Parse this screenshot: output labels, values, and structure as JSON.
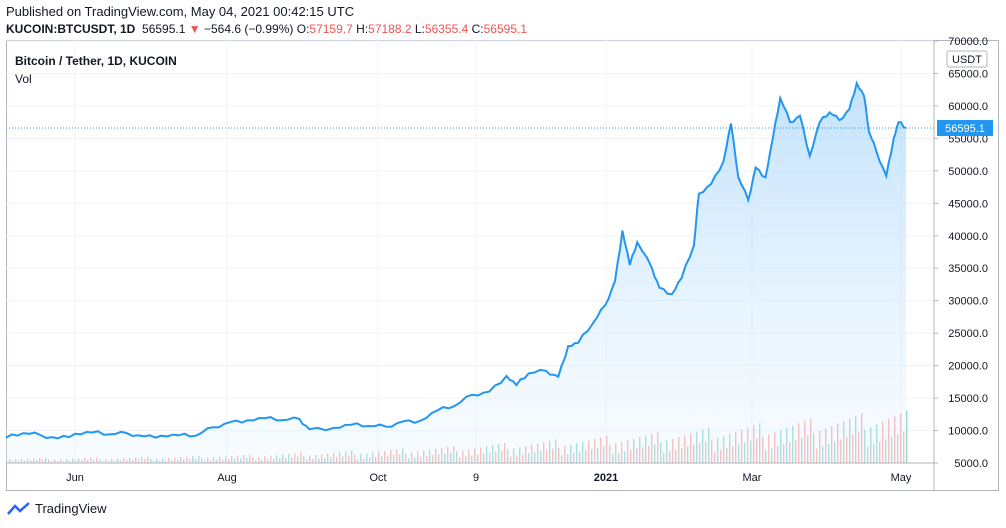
{
  "header": {
    "published": "Published on TradingView.com, May 04, 2021 00:42:15 UTC",
    "symbol": "KUCOIN:BTCUSDT, 1D",
    "last": "56595.1",
    "change": "−564.6 (−0.99%)",
    "open_label": "O:",
    "open": "57159.7",
    "high_label": "H:",
    "high": "57188.2",
    "low_label": "L:",
    "low": "56355.4",
    "close_label": "C:",
    "close": "56595.1"
  },
  "legend": {
    "name": "Bitcoin / Tether, 1D, KUCOIN",
    "vol": "Vol"
  },
  "footer": {
    "brand": "TradingView"
  },
  "colors": {
    "line": "#2196f3",
    "fill_top": "#bbdefb",
    "up": "#26a69a",
    "down": "#ef5350",
    "price_tag": "#2196f3",
    "grid": "#f0f3fa"
  },
  "chart_data": {
    "type": "area",
    "title": "Bitcoin / Tether, 1D, KUCOIN",
    "x_labels": [
      "Jun",
      "Aug",
      "Oct",
      "9",
      "2021",
      "Mar",
      "May"
    ],
    "y_unit": "USDT",
    "y_ticks": [
      "5000.0",
      "10000.0",
      "15000.0",
      "20000.0",
      "25000.0",
      "30000.0",
      "35000.0",
      "40000.0",
      "45000.0",
      "50000.0",
      "55000.0",
      "60000.0",
      "65000.0",
      "70000.0"
    ],
    "ylim": [
      5000,
      70000
    ],
    "last_price_label": "56595.1",
    "last_price": 56595.1,
    "x_range": [
      "2020-05-03",
      "2021-05-03"
    ],
    "points": [
      [
        "2020-05-03",
        8900
      ],
      [
        "2020-05-10",
        9600
      ],
      [
        "2020-05-17",
        9300
      ],
      [
        "2020-05-24",
        8800
      ],
      [
        "2020-05-31",
        9500
      ],
      [
        "2020-06-07",
        9700
      ],
      [
        "2020-06-14",
        9400
      ],
      [
        "2020-06-21",
        9600
      ],
      [
        "2020-06-28",
        9100
      ],
      [
        "2020-07-05",
        9200
      ],
      [
        "2020-07-12",
        9250
      ],
      [
        "2020-07-19",
        9200
      ],
      [
        "2020-07-26",
        10500
      ],
      [
        "2020-08-02",
        11300
      ],
      [
        "2020-08-09",
        11600
      ],
      [
        "2020-08-16",
        11900
      ],
      [
        "2020-08-23",
        11600
      ],
      [
        "2020-08-30",
        11800
      ],
      [
        "2020-09-03",
        10200
      ],
      [
        "2020-09-13",
        10400
      ],
      [
        "2020-09-20",
        10900
      ],
      [
        "2020-09-27",
        10700
      ],
      [
        "2020-10-04",
        10600
      ],
      [
        "2020-10-11",
        11400
      ],
      [
        "2020-10-18",
        11500
      ],
      [
        "2020-10-25",
        13100
      ],
      [
        "2020-11-01",
        13800
      ],
      [
        "2020-11-08",
        15500
      ],
      [
        "2020-11-15",
        16000
      ],
      [
        "2020-11-22",
        18400
      ],
      [
        "2020-11-26",
        17000
      ],
      [
        "2020-12-01",
        18800
      ],
      [
        "2020-12-08",
        19200
      ],
      [
        "2020-12-13",
        18300
      ],
      [
        "2020-12-17",
        23000
      ],
      [
        "2020-12-21",
        23500
      ],
      [
        "2020-12-27",
        26500
      ],
      [
        "2021-01-01",
        29300
      ],
      [
        "2021-01-05",
        33000
      ],
      [
        "2021-01-08",
        40800
      ],
      [
        "2021-01-11",
        35500
      ],
      [
        "2021-01-14",
        39000
      ],
      [
        "2021-01-20",
        35000
      ],
      [
        "2021-01-23",
        32000
      ],
      [
        "2021-01-28",
        31000
      ],
      [
        "2021-02-01",
        33500
      ],
      [
        "2021-02-06",
        38500
      ],
      [
        "2021-02-08",
        46500
      ],
      [
        "2021-02-13",
        48000
      ],
      [
        "2021-02-18",
        51500
      ],
      [
        "2021-02-21",
        57300
      ],
      [
        "2021-02-24",
        49000
      ],
      [
        "2021-02-28",
        45500
      ],
      [
        "2021-03-03",
        50500
      ],
      [
        "2021-03-07",
        49000
      ],
      [
        "2021-03-10",
        55000
      ],
      [
        "2021-03-13",
        61200
      ],
      [
        "2021-03-17",
        57500
      ],
      [
        "2021-03-21",
        58500
      ],
      [
        "2021-03-25",
        52300
      ],
      [
        "2021-03-29",
        57500
      ],
      [
        "2021-04-02",
        59000
      ],
      [
        "2021-04-06",
        57800
      ],
      [
        "2021-04-10",
        59500
      ],
      [
        "2021-04-13",
        63500
      ],
      [
        "2021-04-16",
        61500
      ],
      [
        "2021-04-18",
        56000
      ],
      [
        "2021-04-21",
        53000
      ],
      [
        "2021-04-25",
        49200
      ],
      [
        "2021-04-28",
        55000
      ],
      [
        "2021-04-30",
        57500
      ],
      [
        "2021-05-03",
        56595.1
      ]
    ],
    "volume_note": "Vol histogram shown below price; bars colored green (up) / red (down)"
  }
}
